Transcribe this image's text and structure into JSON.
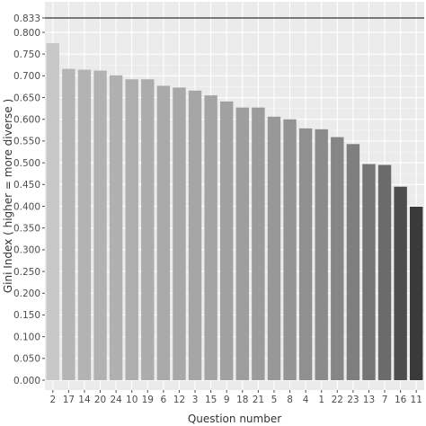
{
  "chart_data": {
    "type": "bar",
    "xlabel": "Question number",
    "ylabel": "Gini Index ( higher = more diverse )",
    "categories": [
      "2",
      "17",
      "14",
      "20",
      "24",
      "10",
      "19",
      "6",
      "12",
      "3",
      "15",
      "9",
      "18",
      "21",
      "5",
      "8",
      "4",
      "1",
      "22",
      "23",
      "13",
      "7",
      "16",
      "11"
    ],
    "values": [
      0.775,
      0.716,
      0.714,
      0.712,
      0.701,
      0.692,
      0.692,
      0.677,
      0.673,
      0.666,
      0.655,
      0.641,
      0.627,
      0.627,
      0.606,
      0.6,
      0.579,
      0.577,
      0.559,
      0.543,
      0.497,
      0.495,
      0.445,
      0.399
    ],
    "ylim": [
      0,
      0.833
    ],
    "y_ticks": [
      "0.000",
      "0.050",
      "0.100",
      "0.150",
      "0.200",
      "0.250",
      "0.300",
      "0.350",
      "0.400",
      "0.450",
      "0.500",
      "0.550",
      "0.600",
      "0.650",
      "0.700",
      "0.750",
      "0.800",
      "0.833"
    ],
    "reference_line": {
      "value": 0.833,
      "color": "#333333"
    },
    "bar_colors": [
      "#c8c8c8",
      "#b5b5b5",
      "#b3b3b3",
      "#b2b2b2",
      "#b0b0b0",
      "#aeaeae",
      "#acacac",
      "#aaaaaa",
      "#a8a8a8",
      "#a6a6a6",
      "#a4a4a4",
      "#a1a1a1",
      "#9e9e9e",
      "#9b9b9b",
      "#989898",
      "#949494",
      "#909090",
      "#8b8b8b",
      "#868686",
      "#7f7f7f",
      "#757575",
      "#6b6b6b",
      "#4d4d4d",
      "#3a3a3a"
    ],
    "panel_background": "#ebebeb",
    "grid": true,
    "legend": "none"
  }
}
